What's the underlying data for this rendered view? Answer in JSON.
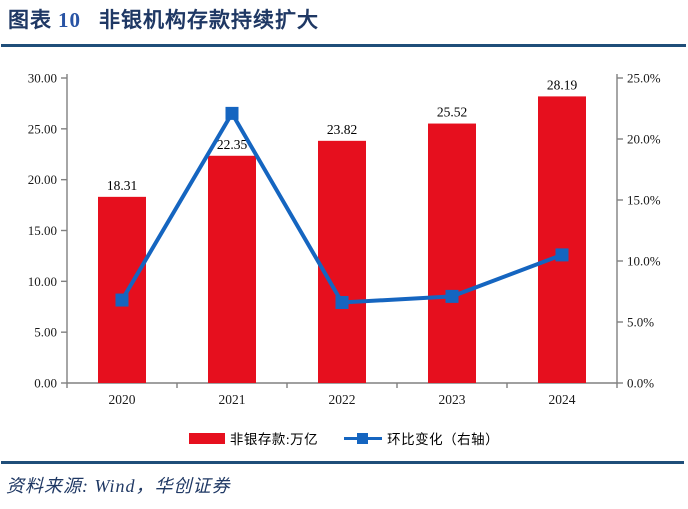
{
  "header": {
    "figure_label": "图表",
    "figure_number": "10",
    "figure_title": "非银机构存款持续扩大"
  },
  "colors": {
    "bar_red": "#E60F1E",
    "line_blue": "#1565C0",
    "title_navy": "#1F3864",
    "rule_navy": "#1F4E79",
    "axis_gray": "#808080",
    "tick_text": "#1a1a1a"
  },
  "chart_data": {
    "type": "bar+line",
    "categories": [
      "2020",
      "2021",
      "2022",
      "2023",
      "2024"
    ],
    "series": [
      {
        "name": "非银存款:万亿",
        "type": "bar",
        "axis": "left",
        "values": [
          18.31,
          22.35,
          23.82,
          25.52,
          28.19
        ],
        "labels": [
          "18.31",
          "22.35",
          "23.82",
          "25.52",
          "28.19"
        ]
      },
      {
        "name": "环比变化（右轴）",
        "type": "line",
        "axis": "right",
        "values": [
          6.8,
          22.1,
          6.6,
          7.1,
          10.5
        ]
      }
    ],
    "left_axis": {
      "ticks": [
        "0.00",
        "5.00",
        "10.00",
        "15.00",
        "20.00",
        "25.00",
        "30.00"
      ],
      "min": 0,
      "max": 30
    },
    "right_axis": {
      "ticks": [
        "0.0%",
        "5.0%",
        "10.0%",
        "15.0%",
        "20.0%",
        "25.0%"
      ],
      "min": 0,
      "max": 25
    },
    "grid": false,
    "legend_position": "bottom"
  },
  "legend": {
    "bar_label": "非银存款:万亿",
    "line_label": "环比变化（右轴）"
  },
  "footer": {
    "source_text": "资料来源: Wind，华创证券"
  }
}
